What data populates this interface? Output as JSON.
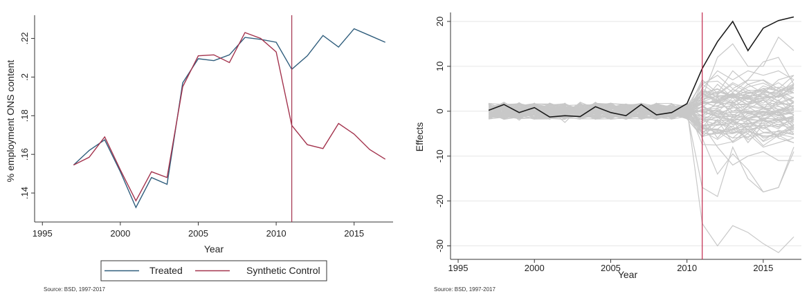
{
  "chart_data": [
    {
      "type": "line",
      "xlabel": "Year",
      "ylabel": "% employment ONS content",
      "xlim": [
        1994.5,
        2017.5
      ],
      "ylim": [
        0.125,
        0.232
      ],
      "xticks": [
        1995,
        2000,
        2005,
        2010,
        2015
      ],
      "xtick_labels": [
        "1995",
        "2000",
        "2005",
        "2010",
        "2015"
      ],
      "yticks": [
        0.14,
        0.16,
        0.18,
        0.2,
        0.22
      ],
      "ytick_labels": [
        ".14",
        ".16",
        ".18",
        ".2",
        ".22"
      ],
      "vline": 2011,
      "grid": false,
      "legend_position": "bottom",
      "source": "Source: BSD, 1997-2017",
      "x": [
        1997,
        1998,
        1999,
        2000,
        2001,
        2002,
        2003,
        2004,
        2005,
        2006,
        2007,
        2008,
        2009,
        2010,
        2011,
        2012,
        2013,
        2014,
        2015,
        2016,
        2017
      ],
      "series": [
        {
          "name": "Treated",
          "color": "#2f5d7c",
          "values": [
            0.1545,
            0.162,
            0.1675,
            0.151,
            0.1325,
            0.148,
            0.1445,
            0.197,
            0.2095,
            0.2085,
            0.2115,
            0.2205,
            0.2195,
            0.218,
            0.204,
            0.211,
            0.2215,
            0.2155,
            0.225,
            0.2215,
            0.218
          ]
        },
        {
          "name": "Synthetic Control",
          "color": "#a3334d",
          "values": [
            0.1545,
            0.1585,
            0.169,
            0.152,
            0.136,
            0.151,
            0.148,
            0.195,
            0.211,
            0.2115,
            0.2075,
            0.223,
            0.22,
            0.213,
            0.175,
            0.165,
            0.163,
            0.176,
            0.1705,
            0.1625,
            0.1575
          ]
        }
      ]
    },
    {
      "type": "line",
      "xlabel": "Year",
      "ylabel": "Effects",
      "xlim": [
        1994.5,
        2017.5
      ],
      "ylim": [
        -33,
        22
      ],
      "xticks": [
        1995,
        2000,
        2005,
        2010,
        2015
      ],
      "xtick_labels": [
        "1995",
        "2000",
        "2005",
        "2010",
        "2015"
      ],
      "yticks": [
        -30,
        -20,
        -10,
        0,
        10,
        20
      ],
      "ytick_labels": [
        "-30",
        "-20",
        "-10",
        "0",
        "10",
        "20"
      ],
      "vline": 2011,
      "grid": true,
      "source": "Source: BSD, 1997-2017",
      "x": [
        1997,
        1998,
        1999,
        2000,
        2001,
        2002,
        2003,
        2004,
        2005,
        2006,
        2007,
        2008,
        2009,
        2010,
        2011,
        2012,
        2013,
        2014,
        2015,
        2016,
        2017
      ],
      "series": [
        {
          "role": "treated",
          "color": "#1a1a1a",
          "values": [
            0.2,
            1.5,
            -0.3,
            0.8,
            -1.3,
            -1.0,
            -1.2,
            1.0,
            -0.3,
            -1.0,
            1.5,
            -0.8,
            -0.3,
            1.7,
            9.5,
            15.5,
            20.0,
            13.5,
            18.5,
            20.2,
            21.0
          ]
        }
      ],
      "placebo_color": "#c8c8c8",
      "placebo_series": [
        [
          -1.5,
          0.5,
          -2.0,
          0.8,
          -1.0,
          -0.5,
          0.3,
          -1.2,
          1.5,
          -0.8,
          0.2,
          -0.5,
          0.6,
          -0.3,
          -17,
          -19,
          -8,
          -15,
          -18,
          -17,
          -9
        ],
        [
          1.0,
          -0.5,
          1.2,
          -1.5,
          0.4,
          -2.5,
          1.0,
          0.2,
          -1.0,
          0.8,
          -1.8,
          0.5,
          -0.6,
          0.4,
          -25,
          -30,
          -25.5,
          -27,
          -29.5,
          -31.5,
          -28
        ],
        [
          0.5,
          1.8,
          -0.8,
          0.3,
          -1.2,
          1.5,
          -0.5,
          2.0,
          -0.2,
          -1.5,
          1.0,
          0.3,
          -0.4,
          0.6,
          -3,
          -8,
          -12,
          -10,
          -9,
          -11,
          -11
        ],
        [
          -0.8,
          -1.2,
          0.5,
          1.5,
          0.6,
          -0.4,
          -1.5,
          0.8,
          0.4,
          1.2,
          -0.3,
          -1.0,
          0.7,
          -0.8,
          3,
          12,
          15,
          10,
          10,
          16.5,
          13.5
        ],
        [
          1.5,
          0.2,
          -1.5,
          -0.4,
          1.8,
          0.5,
          0.9,
          -0.6,
          -1.6,
          0.3,
          1.4,
          -0.2,
          -1.1,
          0.9,
          -6,
          -14,
          -9.5,
          -13,
          -18,
          -17,
          -8
        ],
        [
          -0.2,
          -1.6,
          0.9,
          -1.0,
          0.2,
          1.0,
          -0.9,
          1.4,
          0.8,
          -0.4,
          -1.2,
          1.6,
          0.5,
          -0.6,
          6,
          8,
          5,
          7,
          11,
          12,
          6
        ],
        [
          0.9,
          0.6,
          -0.2,
          1.8,
          -0.7,
          -1.6,
          1.6,
          -0.4,
          0.5,
          1.6,
          0.6,
          -1.4,
          0.2,
          1.0,
          -4,
          -4,
          -6,
          -3,
          -6,
          -5,
          -3
        ],
        [
          -1.2,
          1.1,
          1.6,
          -0.6,
          -1.8,
          0.7,
          -0.3,
          -1.8,
          1.1,
          -1.1,
          -0.5,
          0.9,
          -0.8,
          -1.0,
          4,
          5,
          3,
          6,
          4,
          7,
          8
        ],
        [
          0.3,
          -0.4,
          -1.1,
          0.6,
          1.1,
          -0.9,
          2.0,
          0.6,
          -1.3,
          0.5,
          1.8,
          -0.7,
          1.0,
          0.2,
          -2,
          -3,
          2,
          -2,
          -4,
          -2,
          -5
        ],
        [
          -0.6,
          0.9,
          0.3,
          -1.7,
          -0.3,
          1.8,
          -1.7,
          -0.9,
          0.1,
          -1.8,
          -0.8,
          1.3,
          -1.3,
          -0.4,
          2,
          1,
          4,
          2,
          3,
          5,
          4
        ],
        [
          1.8,
          -1.3,
          -0.6,
          1.1,
          0.8,
          -0.2,
          0.4,
          1.6,
          -0.7,
          0.9,
          -1.5,
          -1.1,
          0.8,
          0.7,
          -1,
          -6,
          -2,
          -7,
          -3,
          -6,
          -7
        ],
        [
          -1.0,
          0.0,
          1.9,
          -0.2,
          -1.4,
          0.3,
          -1.1,
          -0.1,
          1.8,
          -0.1,
          0.9,
          0.0,
          -0.2,
          -0.2,
          1,
          3,
          -1,
          1,
          -1,
          2,
          1
        ],
        [
          0.6,
          1.4,
          -1.6,
          0.9,
          0.0,
          -1.2,
          0.6,
          1.1,
          -0.5,
          1.3,
          -0.1,
          1.8,
          -0.9,
          0.5,
          -2,
          0,
          -3,
          -1,
          0,
          -2,
          -1
        ],
        [
          -1.6,
          -0.7,
          0.7,
          -1.3,
          1.4,
          1.2,
          -0.6,
          -1.4,
          0.7,
          -0.6,
          1.3,
          -1.6,
          1.2,
          -0.7,
          0,
          -1,
          1,
          3,
          1,
          -1,
          2
        ],
        [
          0.2,
          2.0,
          0.1,
          0.4,
          -0.9,
          -0.6,
          1.3,
          0.3,
          -1.1,
          0.0,
          -1.0,
          0.6,
          0.3,
          0.3,
          5,
          9,
          7,
          9,
          8,
          9,
          7
        ],
        [
          -0.4,
          -1.8,
          -1.3,
          -0.8,
          0.5,
          0.8,
          -1.4,
          0.9,
          1.3,
          -1.4,
          0.4,
          -0.4,
          -0.5,
          -0.3,
          -3,
          -5,
          -4,
          -6,
          -2,
          -3,
          -2
        ],
        [
          1.3,
          0.4,
          1.1,
          1.4,
          -1.6,
          -1.8,
          0.1,
          -1.1,
          -0.1,
          1.0,
          -0.6,
          1.1,
          0.9,
          0.8,
          2,
          6,
          3,
          4,
          5,
          3,
          6
        ],
        [
          -0.9,
          -0.2,
          -0.4,
          -0.1,
          0.9,
          1.6,
          -0.2,
          1.8,
          0.9,
          -0.2,
          1.6,
          -0.9,
          -0.7,
          -0.5,
          -1,
          2,
          0,
          0,
          -2,
          0,
          -3
        ],
        [
          0.7,
          1.2,
          1.4,
          -1.4,
          -0.5,
          -0.2,
          1.8,
          -0.7,
          -1.8,
          1.4,
          -1.3,
          0.4,
          0.6,
          0.1,
          7,
          4,
          9,
          6,
          7,
          5,
          8
        ],
        [
          -1.4,
          -1.0,
          -0.9,
          1.6,
          1.6,
          0.4,
          -0.8,
          0.0,
          0.3,
          -0.9,
          0.1,
          -1.2,
          -0.1,
          -0.9,
          -5,
          -2,
          -7,
          -5,
          -8,
          -7,
          -6
        ]
      ]
    }
  ]
}
